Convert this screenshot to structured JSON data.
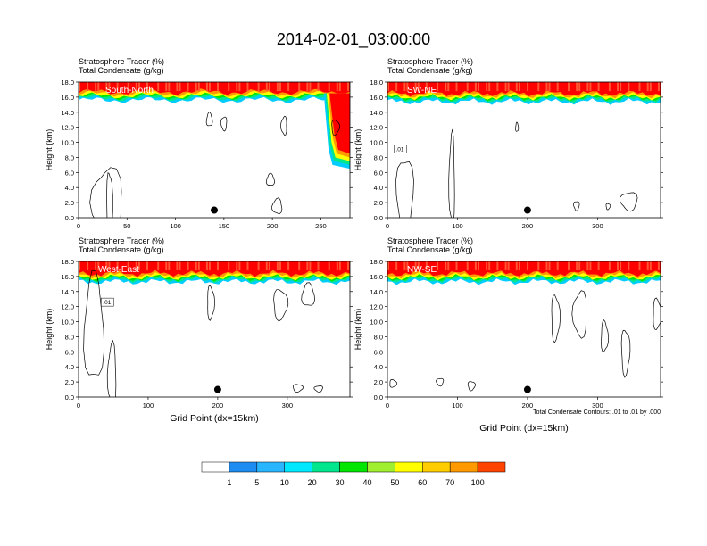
{
  "title": "2014-02-01_03:00:00",
  "panel_label_tracer": "Stratosphere Tracer   (%)",
  "panel_label_condensate": "Total Condensate   (g/kg)",
  "y_axis_label": "Height (km)",
  "x_axis_label": "Grid Point (dx=15km)",
  "contour_note": "Total Condensate Contours: .01 to .01 by .000",
  "contour_level_label": ".01",
  "colorbar": {
    "labels": [
      "1",
      "5",
      "10",
      "20",
      "30",
      "40",
      "50",
      "60",
      "70",
      "100"
    ],
    "colors": [
      "#ffffff",
      "#1e8cf0",
      "#2ab5ff",
      "#00e8ff",
      "#00e68c",
      "#00e600",
      "#a0ee30",
      "#ffff00",
      "#ffcc00",
      "#ff9900",
      "#ff4400",
      "#ff0000"
    ]
  },
  "chart_data": [
    {
      "type": "heatmap",
      "name": "South-North",
      "xlim": [
        0,
        280
      ],
      "ylim": [
        0,
        18
      ],
      "xticks": [
        0,
        50,
        100,
        150,
        200,
        250
      ],
      "yticks": [
        "0.0",
        "2.0",
        "4.0",
        "6.0",
        "8.0",
        "10.0",
        "12.0",
        "14.0",
        "16.0",
        "18.0"
      ],
      "tropopause_height_km": 16.2,
      "feature": "tracer intrusion near grid point 255-270 reaching 7 km",
      "marker": {
        "x": 140,
        "y": 1.0
      }
    },
    {
      "type": "heatmap",
      "name": "SW-NE",
      "xlim": [
        0,
        390
      ],
      "ylim": [
        0,
        18
      ],
      "xticks": [
        0,
        100,
        200,
        300
      ],
      "yticks": [
        "0.0",
        "2.0",
        "4.0",
        "6.0",
        "8.0",
        "10.0",
        "12.0",
        "14.0",
        "16.0",
        "18.0"
      ],
      "tropopause_height_km": 16.0,
      "marker": {
        "x": 200,
        "y": 1.0
      }
    },
    {
      "type": "heatmap",
      "name": "West-East",
      "xlim": [
        0,
        390
      ],
      "ylim": [
        0,
        18
      ],
      "xticks": [
        0,
        100,
        200,
        300
      ],
      "yticks": [
        "0.0",
        "2.0",
        "4.0",
        "6.0",
        "8.0",
        "10.0",
        "12.0",
        "14.0",
        "16.0",
        "18.0"
      ],
      "tropopause_height_km": 15.9,
      "marker": {
        "x": 200,
        "y": 1.0
      }
    },
    {
      "type": "heatmap",
      "name": "NW-SE",
      "xlim": [
        0,
        390
      ],
      "ylim": [
        0,
        18
      ],
      "xticks": [
        0,
        100,
        200,
        300
      ],
      "yticks": [
        "0.0",
        "2.0",
        "4.0",
        "6.0",
        "8.0",
        "10.0",
        "12.0",
        "14.0",
        "16.0",
        "18.0"
      ],
      "tropopause_height_km": 15.9,
      "marker": {
        "x": 200,
        "y": 1.0
      }
    }
  ]
}
